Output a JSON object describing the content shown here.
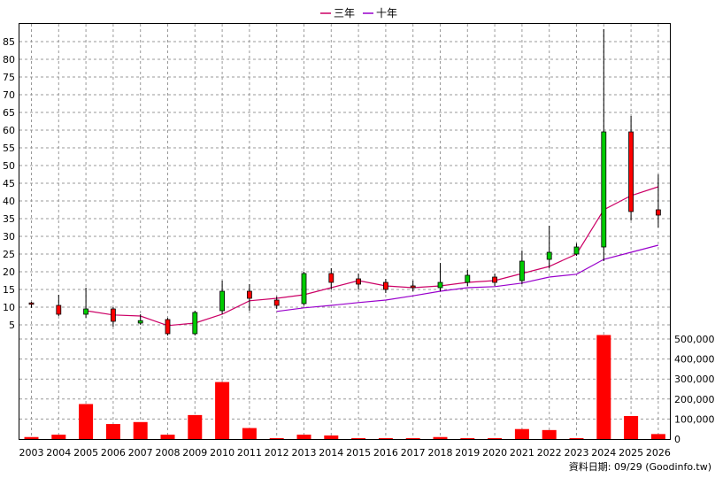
{
  "chart_data": {
    "type": "candlestick+line+bar",
    "legend": [
      {
        "name": "三年",
        "color": "#cc0066"
      },
      {
        "name": "十年",
        "color": "#9900cc"
      }
    ],
    "years": [
      "2003",
      "2004",
      "2005",
      "2006",
      "2007",
      "2008",
      "2009",
      "2010",
      "2011",
      "2012",
      "2013",
      "2014",
      "2015",
      "2016",
      "2017",
      "2018",
      "2019",
      "2020",
      "2021",
      "2022",
      "2023",
      "2024",
      "2025",
      "2026"
    ],
    "price_axis": {
      "min": 0,
      "max": 90,
      "ticks": [
        5,
        10,
        15,
        20,
        25,
        30,
        35,
        40,
        45,
        50,
        55,
        60,
        65,
        70,
        75,
        80,
        85
      ]
    },
    "volume_axis": {
      "min": 0,
      "max": 500000,
      "ticks": [
        "0",
        "100,000",
        "200,000",
        "300,000",
        "400,000",
        "500,000"
      ],
      "tick_values": [
        0,
        100000,
        200000,
        300000,
        400000,
        500000
      ]
    },
    "candles": [
      {
        "year": "2003",
        "open": 10.8,
        "close": 11.2,
        "high": 11.5,
        "low": 9.8
      },
      {
        "year": "2004",
        "open": 8.0,
        "close": 10.5,
        "high": 13.5,
        "low": 7.5
      },
      {
        "year": "2005",
        "open": 9.5,
        "close": 8.0,
        "high": 15.5,
        "low": 7.0
      },
      {
        "year": "2006",
        "open": 6.0,
        "close": 9.5,
        "high": 10.0,
        "low": 4.5
      },
      {
        "year": "2007",
        "open": 6.2,
        "close": 5.5,
        "high": 8.0,
        "low": 5.0
      },
      {
        "year": "2008",
        "open": 2.5,
        "close": 6.5,
        "high": 7.0,
        "low": 2.0
      },
      {
        "year": "2009",
        "open": 8.5,
        "close": 2.5,
        "high": 9.0,
        "low": 2.0
      },
      {
        "year": "2010",
        "open": 14.5,
        "close": 9.0,
        "high": 17.5,
        "low": 8.0
      },
      {
        "year": "2011",
        "open": 12.5,
        "close": 14.5,
        "high": 16.5,
        "low": 9.0
      },
      {
        "year": "2012",
        "open": 10.5,
        "close": 12.0,
        "high": 13.0,
        "low": 9.5
      },
      {
        "year": "2013",
        "open": 19.5,
        "close": 11.0,
        "high": 20.0,
        "low": 10.5
      },
      {
        "year": "2014",
        "open": 17.0,
        "close": 19.5,
        "high": 21.0,
        "low": 15.0
      },
      {
        "year": "2015",
        "open": 16.5,
        "close": 18.0,
        "high": 19.5,
        "low": 15.0
      },
      {
        "year": "2016",
        "open": 15.0,
        "close": 17.0,
        "high": 18.0,
        "low": 14.0
      },
      {
        "year": "2017",
        "open": 15.5,
        "close": 16.0,
        "high": 17.5,
        "low": 14.5
      },
      {
        "year": "2018",
        "open": 17.0,
        "close": 15.5,
        "high": 22.5,
        "low": 14.5
      },
      {
        "year": "2019",
        "open": 19.0,
        "close": 17.0,
        "high": 20.5,
        "low": 16.0
      },
      {
        "year": "2020",
        "open": 17.0,
        "close": 18.5,
        "high": 19.5,
        "low": 16.0
      },
      {
        "year": "2021",
        "open": 23.0,
        "close": 17.5,
        "high": 26.0,
        "low": 16.5
      },
      {
        "year": "2022",
        "open": 25.5,
        "close": 23.5,
        "high": 33.0,
        "low": 21.0
      },
      {
        "year": "2023",
        "open": 27.0,
        "close": 25.0,
        "high": 28.0,
        "low": 24.5
      },
      {
        "year": "2024",
        "open": 59.5,
        "close": 27.0,
        "high": 88.5,
        "low": 23.0
      },
      {
        "year": "2025",
        "open": 37.0,
        "close": 59.5,
        "high": 64.0,
        "low": 34.5
      },
      {
        "year": "2026",
        "open": 36.0,
        "close": 37.5,
        "high": 47.5,
        "low": 32.5
      }
    ],
    "ma3": [
      {
        "year": "2005",
        "value": 9.0
      },
      {
        "year": "2006",
        "value": 7.8
      },
      {
        "year": "2007",
        "value": 7.5
      },
      {
        "year": "2008",
        "value": 4.8
      },
      {
        "year": "2009",
        "value": 5.5
      },
      {
        "year": "2010",
        "value": 8.0
      },
      {
        "year": "2011",
        "value": 11.8
      },
      {
        "year": "2012",
        "value": 12.5
      },
      {
        "year": "2013",
        "value": 13.5
      },
      {
        "year": "2014",
        "value": 15.5
      },
      {
        "year": "2015",
        "value": 17.5
      },
      {
        "year": "2016",
        "value": 16.0
      },
      {
        "year": "2017",
        "value": 15.5
      },
      {
        "year": "2018",
        "value": 16.0
      },
      {
        "year": "2019",
        "value": 17.0
      },
      {
        "year": "2020",
        "value": 17.5
      },
      {
        "year": "2021",
        "value": 19.5
      },
      {
        "year": "2022",
        "value": 21.5
      },
      {
        "year": "2023",
        "value": 25.0
      },
      {
        "year": "2024",
        "value": 37.5
      },
      {
        "year": "2025",
        "value": 41.5
      },
      {
        "year": "2026",
        "value": 44.0
      }
    ],
    "ma10": [
      {
        "year": "2012",
        "value": 8.8
      },
      {
        "year": "2013",
        "value": 9.8
      },
      {
        "year": "2014",
        "value": 10.5
      },
      {
        "year": "2015",
        "value": 11.3
      },
      {
        "year": "2016",
        "value": 12.0
      },
      {
        "year": "2017",
        "value": 13.2
      },
      {
        "year": "2018",
        "value": 14.5
      },
      {
        "year": "2019",
        "value": 15.5
      },
      {
        "year": "2020",
        "value": 15.8
      },
      {
        "year": "2021",
        "value": 16.8
      },
      {
        "year": "2022",
        "value": 18.5
      },
      {
        "year": "2023",
        "value": 19.3
      },
      {
        "year": "2024",
        "value": 23.5
      },
      {
        "year": "2025",
        "value": 25.5
      },
      {
        "year": "2026",
        "value": 27.5
      }
    ],
    "volume": [
      {
        "year": "2003",
        "value": 10000
      },
      {
        "year": "2004",
        "value": 22000
      },
      {
        "year": "2005",
        "value": 175000
      },
      {
        "year": "2006",
        "value": 75000
      },
      {
        "year": "2007",
        "value": 85000
      },
      {
        "year": "2008",
        "value": 22000
      },
      {
        "year": "2009",
        "value": 120000
      },
      {
        "year": "2010",
        "value": 285000
      },
      {
        "year": "2011",
        "value": 55000
      },
      {
        "year": "2012",
        "value": 2000
      },
      {
        "year": "2013",
        "value": 22000
      },
      {
        "year": "2014",
        "value": 18000
      },
      {
        "year": "2015",
        "value": 3000
      },
      {
        "year": "2016",
        "value": 2000
      },
      {
        "year": "2017",
        "value": 2000
      },
      {
        "year": "2018",
        "value": 10000
      },
      {
        "year": "2019",
        "value": 3000
      },
      {
        "year": "2020",
        "value": 3000
      },
      {
        "year": "2021",
        "value": 50000
      },
      {
        "year": "2022",
        "value": 45000
      },
      {
        "year": "2023",
        "value": 3000
      },
      {
        "year": "2024",
        "value": 520000
      },
      {
        "year": "2025",
        "value": 115000
      },
      {
        "year": "2026",
        "value": 25000
      }
    ],
    "colors": {
      "up": "#ff0000",
      "down": "#00cc00",
      "volume": "#ff0000",
      "grid": "#999999"
    }
  },
  "source_label": "資料日期: 09/29  (Goodinfo.tw)"
}
